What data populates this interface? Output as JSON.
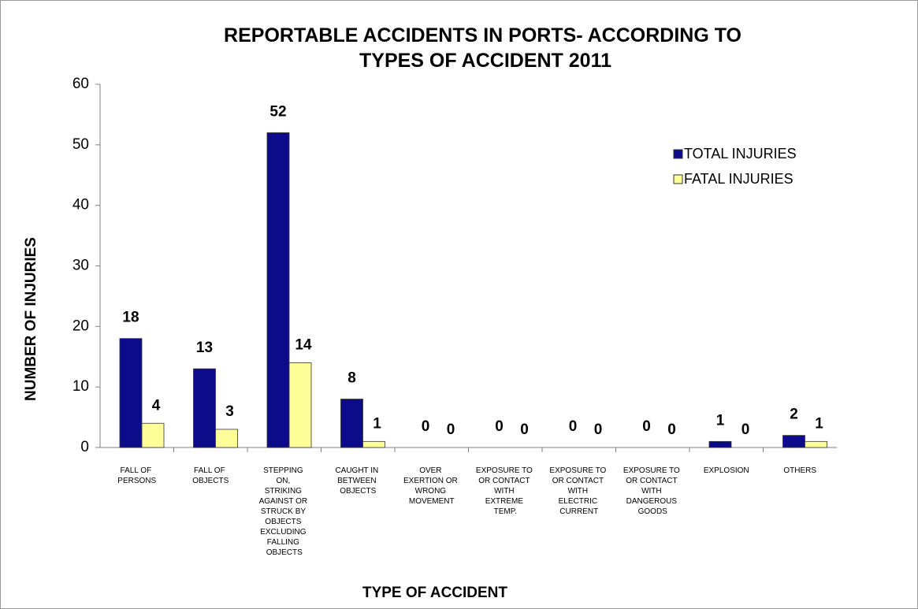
{
  "chart_data": {
    "type": "bar",
    "title": "REPORTABLE ACCIDENTS IN PORTS- ACCORDING TO TYPES OF ACCIDENT 2011",
    "x_label": "TYPE OF ACCIDENT",
    "y_label": "NUMBER OF INJURIES",
    "categories": [
      "FALL OF PERSONS",
      "FALL OF OBJECTS",
      "STEPPING ON, STRIKING AGAINST OR STRUCK BY OBJECTS EXCLUDING FALLING OBJECTS",
      "CAUGHT IN BETWEEN OBJECTS",
      "OVER EXERTION OR WRONG MOVEMENT",
      "EXPOSURE TO OR CONTACT WITH EXTREME TEMP.",
      "EXPOSURE TO OR CONTACT WITH ELECTRIC CURRENT",
      "EXPOSURE TO OR CONTACT WITH DANGEROUS GOODS",
      "EXPLOSION",
      "OTHERS"
    ],
    "series": [
      {
        "name": "TOTAL INJURIES",
        "color": "#0c0c8a",
        "label_color": "#8b1a1a",
        "values": [
          18,
          13,
          52,
          8,
          0,
          0,
          0,
          0,
          1,
          2
        ]
      },
      {
        "name": "FATAL INJURIES",
        "color": "#ffff99",
        "label_color": "#000000",
        "values": [
          4,
          3,
          14,
          1,
          0,
          0,
          0,
          0,
          0,
          1
        ]
      }
    ],
    "ylim": [
      0,
      60
    ],
    "yticks": [
      0,
      10,
      20,
      30,
      40,
      50,
      60
    ],
    "grid": false,
    "legend": "upper right"
  }
}
